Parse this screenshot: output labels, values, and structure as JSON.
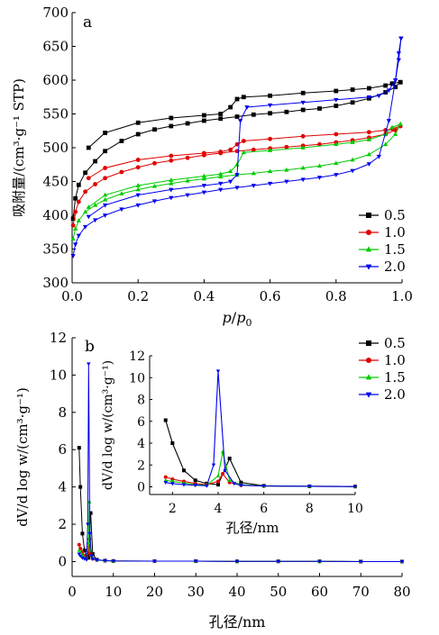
{
  "chart_data": [
    {
      "panel": "a",
      "type": "line",
      "ylabel": "吸附量/(cm³·g⁻¹ STP)",
      "xlabel_parts": [
        "p",
        "/",
        "p",
        "0"
      ],
      "xlim": [
        0,
        1.0
      ],
      "ylim": [
        300,
        700
      ],
      "xticks": [
        "0.0",
        "0.2",
        "0.4",
        "0.6",
        "0.8",
        "1.0"
      ],
      "yticks": [
        "300",
        "350",
        "400",
        "450",
        "500",
        "550",
        "600",
        "650",
        "700"
      ],
      "legend_position": "bottom-right",
      "series": [
        {
          "name": "0.5",
          "color": "#000000",
          "marker": "square",
          "adsorption": [
            [
              0.003,
              395
            ],
            [
              0.01,
              425
            ],
            [
              0.02,
              445
            ],
            [
              0.04,
              463
            ],
            [
              0.07,
              480
            ],
            [
              0.1,
              495
            ],
            [
              0.15,
              510
            ],
            [
              0.2,
              520
            ],
            [
              0.25,
              527
            ],
            [
              0.3,
              532
            ],
            [
              0.35,
              536
            ],
            [
              0.4,
              540
            ],
            [
              0.45,
              543
            ],
            [
              0.5,
              546
            ],
            [
              0.55,
              549
            ],
            [
              0.6,
              551
            ],
            [
              0.65,
              553
            ],
            [
              0.7,
              556
            ],
            [
              0.75,
              558
            ],
            [
              0.8,
              562
            ],
            [
              0.85,
              567
            ],
            [
              0.9,
              573
            ],
            [
              0.95,
              582
            ],
            [
              0.98,
              590
            ],
            [
              0.995,
              597
            ]
          ],
          "desorption": [
            [
              0.995,
              597
            ],
            [
              0.97,
              595
            ],
            [
              0.95,
              592
            ],
            [
              0.9,
              588
            ],
            [
              0.85,
              586
            ],
            [
              0.8,
              584
            ],
            [
              0.7,
              581
            ],
            [
              0.6,
              577
            ],
            [
              0.52,
              575
            ],
            [
              0.5,
              572
            ],
            [
              0.48,
              560
            ],
            [
              0.45,
              550
            ],
            [
              0.4,
              548
            ],
            [
              0.3,
              544
            ],
            [
              0.2,
              537
            ],
            [
              0.1,
              522
            ],
            [
              0.05,
              500
            ]
          ]
        },
        {
          "name": "1.0",
          "color": "#e00000",
          "marker": "circle",
          "adsorption": [
            [
              0.003,
              385
            ],
            [
              0.01,
              405
            ],
            [
              0.02,
              420
            ],
            [
              0.04,
              435
            ],
            [
              0.07,
              446
            ],
            [
              0.1,
              455
            ],
            [
              0.15,
              464
            ],
            [
              0.2,
              471
            ],
            [
              0.25,
              477
            ],
            [
              0.3,
              481
            ],
            [
              0.35,
              485
            ],
            [
              0.4,
              489
            ],
            [
              0.45,
              492
            ],
            [
              0.5,
              495
            ],
            [
              0.55,
              497
            ],
            [
              0.6,
              499
            ],
            [
              0.65,
              501
            ],
            [
              0.7,
              503
            ],
            [
              0.75,
              505
            ],
            [
              0.8,
              508
            ],
            [
              0.85,
              511
            ],
            [
              0.9,
              515
            ],
            [
              0.95,
              520
            ],
            [
              0.98,
              526
            ],
            [
              0.995,
              532
            ]
          ],
          "desorption": [
            [
              0.995,
              532
            ],
            [
              0.97,
              528
            ],
            [
              0.95,
              526
            ],
            [
              0.9,
              523
            ],
            [
              0.8,
              520
            ],
            [
              0.7,
              517
            ],
            [
              0.6,
              513
            ],
            [
              0.52,
              510
            ],
            [
              0.5,
              505
            ],
            [
              0.48,
              497
            ],
            [
              0.45,
              494
            ],
            [
              0.4,
              492
            ],
            [
              0.3,
              488
            ],
            [
              0.2,
              482
            ],
            [
              0.1,
              470
            ],
            [
              0.05,
              455
            ]
          ]
        },
        {
          "name": "1.5",
          "color": "#00cc00",
          "marker": "triangle-up",
          "adsorption": [
            [
              0.003,
              365
            ],
            [
              0.01,
              380
            ],
            [
              0.02,
              392
            ],
            [
              0.04,
              405
            ],
            [
              0.07,
              415
            ],
            [
              0.1,
              423
            ],
            [
              0.15,
              432
            ],
            [
              0.2,
              438
            ],
            [
              0.25,
              443
            ],
            [
              0.3,
              447
            ],
            [
              0.35,
              451
            ],
            [
              0.4,
              454
            ],
            [
              0.45,
              457
            ],
            [
              0.5,
              460
            ],
            [
              0.55,
              462
            ],
            [
              0.6,
              465
            ],
            [
              0.65,
              467
            ],
            [
              0.7,
              470
            ],
            [
              0.75,
              473
            ],
            [
              0.8,
              477
            ],
            [
              0.85,
              482
            ],
            [
              0.9,
              490
            ],
            [
              0.95,
              505
            ],
            [
              0.98,
              520
            ],
            [
              0.995,
              535
            ]
          ],
          "desorption": [
            [
              0.995,
              535
            ],
            [
              0.97,
              530
            ],
            [
              0.95,
              520
            ],
            [
              0.9,
              512
            ],
            [
              0.85,
              508
            ],
            [
              0.8,
              505
            ],
            [
              0.7,
              500
            ],
            [
              0.6,
              496
            ],
            [
              0.52,
              493
            ],
            [
              0.5,
              475
            ],
            [
              0.48,
              465
            ],
            [
              0.45,
              461
            ],
            [
              0.4,
              458
            ],
            [
              0.3,
              452
            ],
            [
              0.2,
              444
            ],
            [
              0.1,
              430
            ],
            [
              0.05,
              412
            ]
          ]
        },
        {
          "name": "2.0",
          "color": "#0000ee",
          "marker": "triangle-down",
          "adsorption": [
            [
              0.003,
              340
            ],
            [
              0.01,
              357
            ],
            [
              0.02,
              370
            ],
            [
              0.04,
              383
            ],
            [
              0.07,
              393
            ],
            [
              0.1,
              400
            ],
            [
              0.15,
              409
            ],
            [
              0.2,
              415
            ],
            [
              0.25,
              421
            ],
            [
              0.3,
              426
            ],
            [
              0.35,
              430
            ],
            [
              0.4,
              434
            ],
            [
              0.45,
              438
            ],
            [
              0.5,
              441
            ],
            [
              0.55,
              444
            ],
            [
              0.6,
              447
            ],
            [
              0.65,
              450
            ],
            [
              0.7,
              453
            ],
            [
              0.75,
              456
            ],
            [
              0.8,
              460
            ],
            [
              0.85,
              466
            ],
            [
              0.9,
              476
            ],
            [
              0.93,
              487
            ],
            [
              0.96,
              540
            ],
            [
              0.98,
              600
            ],
            [
              0.99,
              640
            ],
            [
              0.997,
              662
            ]
          ],
          "desorption": [
            [
              0.997,
              662
            ],
            [
              0.99,
              630
            ],
            [
              0.98,
              600
            ],
            [
              0.96,
              585
            ],
            [
              0.93,
              577
            ],
            [
              0.9,
              575
            ],
            [
              0.8,
              571
            ],
            [
              0.7,
              567
            ],
            [
              0.6,
              563
            ],
            [
              0.53,
              560
            ],
            [
              0.51,
              540
            ],
            [
              0.5,
              460
            ],
            [
              0.48,
              450
            ],
            [
              0.45,
              447
            ],
            [
              0.4,
              444
            ],
            [
              0.3,
              438
            ],
            [
              0.2,
              430
            ],
            [
              0.1,
              415
            ],
            [
              0.05,
              398
            ]
          ]
        }
      ]
    },
    {
      "panel": "b",
      "type": "line",
      "ylabel": "dV/d log w/(cm³·g⁻¹)",
      "xlabel": "孔径/nm",
      "xlim": [
        0,
        80
      ],
      "ylim": [
        -0.8,
        12
      ],
      "xticks": [
        "0",
        "10",
        "20",
        "30",
        "40",
        "50",
        "60",
        "70",
        "80"
      ],
      "yticks": [
        "0",
        "2",
        "4",
        "6",
        "8",
        "10",
        "12"
      ],
      "legend_position": "top-right",
      "series": [
        {
          "name": "0.5",
          "color": "#000000",
          "marker": "square",
          "points": [
            [
              1.7,
              6.1
            ],
            [
              2.0,
              4.0
            ],
            [
              2.5,
              1.5
            ],
            [
              3.0,
              0.6
            ],
            [
              3.5,
              0.3
            ],
            [
              4.0,
              0.2
            ],
            [
              4.5,
              2.6
            ],
            [
              5.0,
              0.4
            ],
            [
              6,
              0.1
            ],
            [
              8,
              0.05
            ],
            [
              10,
              0.03
            ],
            [
              20,
              0.02
            ],
            [
              30,
              0.02
            ],
            [
              40,
              0.01
            ],
            [
              50,
              0.01
            ],
            [
              60,
              0.01
            ],
            [
              70,
              0.0
            ],
            [
              80,
              0.0
            ]
          ]
        },
        {
          "name": "1.0",
          "color": "#e00000",
          "marker": "circle",
          "points": [
            [
              1.7,
              0.9
            ],
            [
              2.0,
              0.7
            ],
            [
              2.5,
              0.5
            ],
            [
              3.0,
              0.3
            ],
            [
              3.5,
              0.2
            ],
            [
              4.0,
              0.5
            ],
            [
              4.2,
              1.2
            ],
            [
              4.5,
              0.4
            ],
            [
              5.0,
              0.15
            ],
            [
              6,
              0.08
            ],
            [
              8,
              0.05
            ],
            [
              10,
              0.03
            ],
            [
              20,
              0.02
            ],
            [
              30,
              0.02
            ],
            [
              40,
              0.01
            ],
            [
              50,
              0.01
            ],
            [
              60,
              0.01
            ],
            [
              70,
              0.0
            ],
            [
              80,
              0.0
            ]
          ]
        },
        {
          "name": "1.5",
          "color": "#00cc00",
          "marker": "triangle-up",
          "points": [
            [
              1.7,
              0.6
            ],
            [
              2.0,
              0.5
            ],
            [
              2.5,
              0.35
            ],
            [
              3.0,
              0.2
            ],
            [
              3.5,
              0.15
            ],
            [
              4.0,
              1.0
            ],
            [
              4.2,
              3.2
            ],
            [
              4.5,
              0.6
            ],
            [
              5.0,
              0.2
            ],
            [
              6,
              0.08
            ],
            [
              8,
              0.05
            ],
            [
              10,
              0.03
            ],
            [
              20,
              0.02
            ],
            [
              30,
              0.02
            ],
            [
              40,
              0.01
            ],
            [
              50,
              0.01
            ],
            [
              60,
              0.01
            ],
            [
              70,
              0.0
            ],
            [
              80,
              0.0
            ]
          ]
        },
        {
          "name": "2.0",
          "color": "#0000ee",
          "marker": "triangle-down",
          "points": [
            [
              1.7,
              0.4
            ],
            [
              2.0,
              0.3
            ],
            [
              2.5,
              0.2
            ],
            [
              3.0,
              0.15
            ],
            [
              3.5,
              0.1
            ],
            [
              3.8,
              2.0
            ],
            [
              4.0,
              10.6
            ],
            [
              4.3,
              1.5
            ],
            [
              4.7,
              0.3
            ],
            [
              5.0,
              0.15
            ],
            [
              6,
              0.08
            ],
            [
              8,
              0.05
            ],
            [
              10,
              0.03
            ],
            [
              20,
              0.02
            ],
            [
              30,
              0.02
            ],
            [
              40,
              0.01
            ],
            [
              50,
              0.01
            ],
            [
              60,
              0.01
            ],
            [
              70,
              0.0
            ],
            [
              80,
              0.0
            ]
          ]
        }
      ],
      "inset": {
        "ylabel": "dV/d log w/(cm³·g⁻¹)",
        "xlabel": "孔径/nm",
        "xlim": [
          1,
          10
        ],
        "ylim": [
          -0.7,
          12
        ],
        "xticks": [
          "2",
          "4",
          "6",
          "8",
          "10"
        ],
        "yticks": [
          "0",
          "2",
          "4",
          "6",
          "8",
          "10",
          "12"
        ]
      }
    }
  ]
}
